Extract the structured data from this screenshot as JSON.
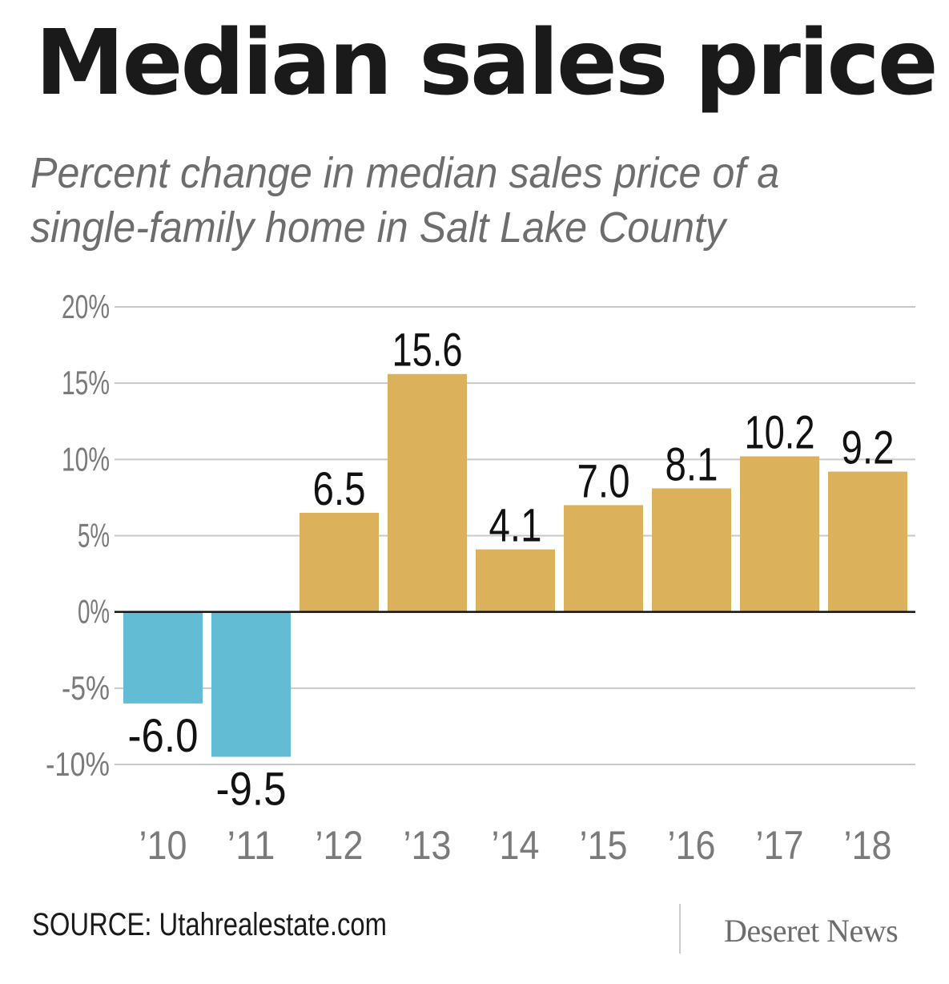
{
  "title": "Median sales price",
  "subtitle": "Percent change in median sales price of a single-family home in Salt Lake County",
  "source": "SOURCE: Utahrealestate.com",
  "publisher": "Deseret News",
  "colors": {
    "positive": "#dbb15c",
    "negative": "#62bcd4",
    "grid": "#c8c8c8",
    "axis": "#111111",
    "tick": "#7a7a7a"
  },
  "chart_data": {
    "type": "bar",
    "title": "Median sales price",
    "subtitle": "Percent change in median sales price of a single-family home in Salt Lake County",
    "xlabel": "",
    "ylabel": "",
    "categories": [
      "’10",
      "’11",
      "’12",
      "’13",
      "’14",
      "’15",
      "’16",
      "’17",
      "’18"
    ],
    "values": [
      -6.0,
      -9.5,
      6.5,
      15.6,
      4.1,
      7.0,
      8.1,
      10.2,
      9.2
    ],
    "value_labels": [
      "-6.0",
      "-9.5",
      "6.5",
      "15.6",
      "4.1",
      "7.0",
      "8.1",
      "10.2",
      "9.2"
    ],
    "ylim": [
      -10,
      20
    ],
    "yticks": [
      20,
      15,
      10,
      5,
      0,
      -5,
      -10
    ],
    "ytick_labels": [
      "20%",
      "15%",
      "10%",
      "5%",
      "0%",
      "-5%",
      "-10%"
    ],
    "grid": true,
    "legend": "none"
  }
}
